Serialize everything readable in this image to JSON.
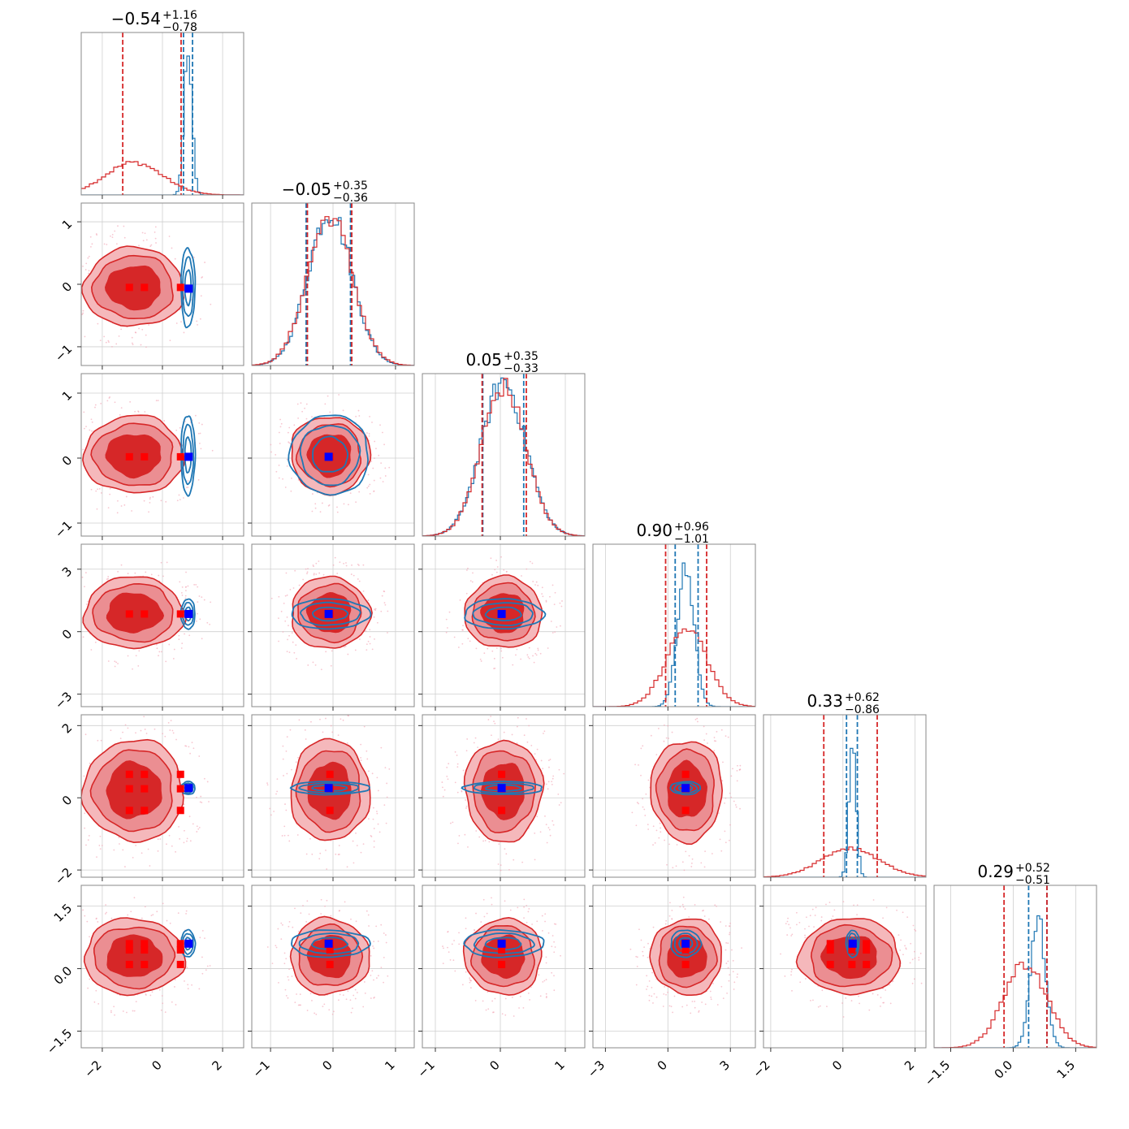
{
  "chart_data": {
    "type": "corner",
    "n_params": 6,
    "series": [
      {
        "name": "",
        "color": "#d62728",
        "style": "filled-contours"
      },
      {
        "name": "",
        "color": "#1f77b4",
        "style": "line-contours"
      }
    ],
    "truth_marker_colors": {
      "red": "#ff0000",
      "blue": "#0000ff"
    },
    "titles": [
      {
        "median": "−0.54",
        "plus": "+1.16",
        "minus": "−0.78"
      },
      {
        "median": "−0.05",
        "plus": "+0.35",
        "minus": "−0.36"
      },
      {
        "median": "0.05",
        "plus": "+0.35",
        "minus": "−0.33"
      },
      {
        "median": "0.90",
        "plus": "+0.96",
        "minus": "−1.01"
      },
      {
        "median": "0.33",
        "plus": "+0.62",
        "minus": "−0.86"
      },
      {
        "median": "0.29",
        "plus": "+0.52",
        "minus": "−0.51"
      }
    ],
    "ranges": [
      [
        -2.7,
        2.7
      ],
      [
        -1.3,
        1.3
      ],
      [
        -1.2,
        1.3
      ],
      [
        -3.6,
        4.2
      ],
      [
        -2.2,
        2.3
      ],
      [
        -1.9,
        2.0
      ]
    ],
    "ticks": [
      {
        "values": [
          -2,
          0,
          2
        ],
        "labels": [
          "−2",
          "0",
          "2"
        ]
      },
      {
        "values": [
          -1,
          0,
          1
        ],
        "labels": [
          "−1",
          "0",
          "1"
        ]
      },
      {
        "values": [
          -1,
          0,
          1
        ],
        "labels": [
          "−1",
          "0",
          "1"
        ]
      },
      {
        "values": [
          -3,
          0,
          3
        ],
        "labels": [
          "−3",
          "0",
          "3"
        ]
      },
      {
        "values": [
          -2,
          0,
          2
        ],
        "labels": [
          "−2",
          "0",
          "2"
        ]
      },
      {
        "values": [
          -1.5,
          0,
          1.5
        ],
        "labels": [
          "−1.5",
          "0.0",
          "1.5"
        ]
      }
    ],
    "red_dist": [
      {
        "mu": -0.95,
        "sd": 0.95,
        "qlines": [
          -1.32,
          0.62
        ]
      },
      {
        "mu": -0.05,
        "sd": 0.36,
        "qlines": [
          -0.41,
          0.3
        ]
      },
      {
        "mu": 0.05,
        "sd": 0.34,
        "qlines": [
          -0.28,
          0.4
        ]
      },
      {
        "mu": 0.9,
        "sd": 0.98,
        "qlines": [
          -0.11,
          1.86
        ]
      },
      {
        "mu": 0.2,
        "sd": 0.8,
        "qlines": [
          -0.53,
          0.95
        ]
      },
      {
        "mu": 0.29,
        "sd": 0.52,
        "qlines": [
          -0.22,
          0.81
        ]
      }
    ],
    "blue_dist": [
      {
        "mu": 0.85,
        "sd": 0.13,
        "qlines": [
          0.7,
          1.0
        ]
      },
      {
        "mu": -0.05,
        "sd": 0.35,
        "qlines": [
          -0.43,
          0.28
        ]
      },
      {
        "mu": 0.05,
        "sd": 0.34,
        "qlines": [
          -0.27,
          0.36
        ]
      },
      {
        "mu": 0.85,
        "sd": 0.4,
        "qlines": [
          0.35,
          1.45
        ]
      },
      {
        "mu": 0.27,
        "sd": 0.1,
        "qlines": [
          0.1,
          0.4
        ]
      },
      {
        "mu": 0.6,
        "sd": 0.18,
        "qlines": [
          0.37,
          0.81
        ]
      }
    ],
    "red_truth": [
      [
        -1.1,
        -0.6,
        0.6
      ],
      [
        -0.05
      ],
      [
        0.02
      ],
      [
        0.85
      ],
      [
        0.25,
        0.65,
        -0.35
      ],
      [
        0.6,
        0.45,
        0.1
      ]
    ],
    "blue_truth": [
      0.87,
      -0.07,
      0.02,
      0.85,
      0.27,
      0.6
    ]
  }
}
